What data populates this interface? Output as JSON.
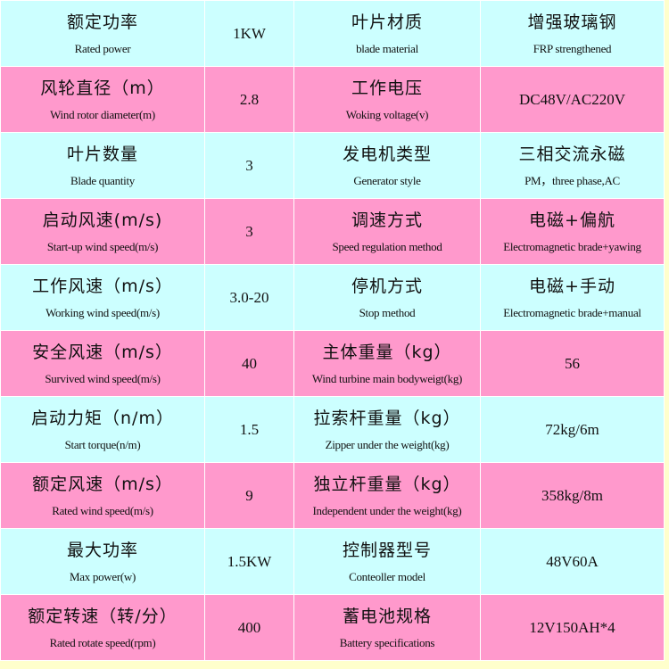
{
  "colors": {
    "row_a": "#ccffff",
    "row_b": "#ff99cc",
    "page_edge": "#ffffcc"
  },
  "rows": [
    {
      "l_zh": "额定功率",
      "l_en": "Rated power",
      "l_val": "1KW",
      "r_zh": "叶片材质",
      "r_en": "blade material",
      "r_val_zh": "增强玻璃钢",
      "r_val_en": "FRP strengthened"
    },
    {
      "l_zh": "风轮直径（m）",
      "l_en": "Wind rotor diameter(m)",
      "l_val": "2.8",
      "r_zh": "工作电压",
      "r_en": "Woking voltage(v)",
      "r_val": "DC48V/AC220V"
    },
    {
      "l_zh": "叶片数量",
      "l_en": "Blade quantity",
      "l_val": "3",
      "r_zh": "发电机类型",
      "r_en": "Generator style",
      "r_val_zh": "三相交流永磁",
      "r_val_en": "PM，three phase,AC"
    },
    {
      "l_zh": "启动风速(m/s)",
      "l_en": "Start-up wind speed(m/s)",
      "l_val": "3",
      "r_zh": "调速方式",
      "r_en": "Speed regulation method",
      "r_val_zh": "电磁+偏航",
      "r_val_en": "Electromagnetic brade+yawing"
    },
    {
      "l_zh": "工作风速（m/s）",
      "l_en": "Working wind speed(m/s)",
      "l_val": "3.0-20",
      "r_zh": "停机方式",
      "r_en": "Stop method",
      "r_val_zh": "电磁+手动",
      "r_val_en": "Electromagnetic brade+manual"
    },
    {
      "l_zh": "安全风速（m/s）",
      "l_en": "Survived wind speed(m/s)",
      "l_val": "40",
      "r_zh": "主体重量（kg）",
      "r_en": "Wind turbine main bodyweigt(kg)",
      "r_val": "56"
    },
    {
      "l_zh": "启动力矩（n/m）",
      "l_en": "Start torque(n/m)",
      "l_val": "1.5",
      "r_zh": "拉索杆重量（kg）",
      "r_en": "Zipper under the weight(kg)",
      "r_val": "72kg/6m"
    },
    {
      "l_zh": "额定风速（m/s）",
      "l_en": "Rated wind speed(m/s)",
      "l_val": "9",
      "r_zh": "独立杆重量（kg）",
      "r_en": "Independent under the weight(kg)",
      "r_val": "358kg/8m"
    },
    {
      "l_zh": "最大功率",
      "l_en": "Max power(w)",
      "l_val": "1.5KW",
      "r_zh": "控制器型号",
      "r_en": "Conteoller model",
      "r_val": "48V60A"
    },
    {
      "l_zh": "额定转速（转/分）",
      "l_en": "Rated rotate speed(rpm)",
      "l_val": "400",
      "r_zh": "蓄电池规格",
      "r_en": "Battery specifications",
      "r_val": "12V150AH*4"
    }
  ]
}
